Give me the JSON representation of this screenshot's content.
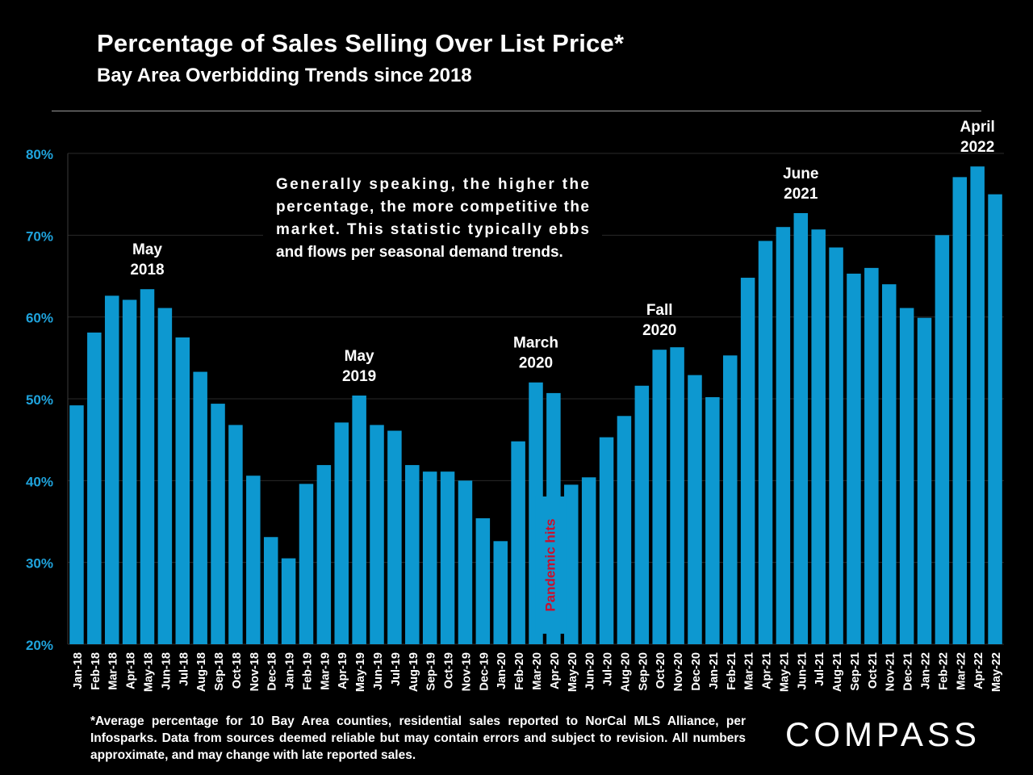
{
  "header": {
    "title": "Percentage of Sales Selling Over List Price*",
    "subtitle": "Bay Area Overbidding Trends since 2018"
  },
  "colors": {
    "bar": "#0d98d0",
    "ytick": "#1fa3dc",
    "gridline": "#2a2a2a",
    "pandemic_text": "#c8102e",
    "background": "#000000",
    "text": "#ffffff"
  },
  "chart_data": {
    "type": "bar",
    "title": "Percentage of Sales Selling Over List Price*",
    "subtitle": "Bay Area Overbidding Trends since 2018",
    "xlabel": "",
    "ylabel": "",
    "ylim": [
      20,
      80
    ],
    "yticks": [
      20,
      30,
      40,
      50,
      60,
      70,
      80
    ],
    "ytick_labels": [
      "20%",
      "30%",
      "40%",
      "50%",
      "60%",
      "70%",
      "80%"
    ],
    "grid": true,
    "categories": [
      "Jan-18",
      "Feb-18",
      "Mar-18",
      "Apr-18",
      "May-18",
      "Jun-18",
      "Jul-18",
      "Aug-18",
      "Sep-18",
      "Oct-18",
      "Nov-18",
      "Dec-18",
      "Jan-19",
      "Feb-19",
      "Mar-19",
      "Apr-19",
      "May-19",
      "Jun-19",
      "Jul-19",
      "Aug-19",
      "Sep-19",
      "Oct-19",
      "Nov-19",
      "Dec-19",
      "Jan-20",
      "Feb-20",
      "Mar-20",
      "Apr-20",
      "May-20",
      "Jun-20",
      "Jul-20",
      "Aug-20",
      "Sep-20",
      "Oct-20",
      "Nov-20",
      "Dec-20",
      "Jan-21",
      "Feb-21",
      "Mar-21",
      "Apr-21",
      "May-21",
      "Jun-21",
      "Jul-21",
      "Aug-21",
      "Sep-21",
      "Oct-21",
      "Nov-21",
      "Dec-21",
      "Jan-22",
      "Feb-22",
      "Mar-22",
      "Apr-22",
      "May-22"
    ],
    "values": [
      49.2,
      58.1,
      62.6,
      62.1,
      63.4,
      61.1,
      57.5,
      53.3,
      49.4,
      46.8,
      40.6,
      33.1,
      30.5,
      39.6,
      41.9,
      47.1,
      50.4,
      46.8,
      46.1,
      41.9,
      41.1,
      41.1,
      40.0,
      35.4,
      32.6,
      44.8,
      52.0,
      50.7,
      39.5,
      40.4,
      45.3,
      47.9,
      51.6,
      56.0,
      56.3,
      52.9,
      50.2,
      55.3,
      64.8,
      69.3,
      71.0,
      72.7,
      70.7,
      68.5,
      65.3,
      66.0,
      64.0,
      61.1,
      59.9,
      70.0,
      77.1,
      78.4,
      75.0
    ],
    "annotations": [
      {
        "lines": [
          "May",
          "2018"
        ],
        "category": "May-18"
      },
      {
        "lines": [
          "May",
          "2019"
        ],
        "category": "May-19"
      },
      {
        "lines": [
          "March",
          "2020"
        ],
        "category": "Mar-20"
      },
      {
        "lines": [
          "Fall",
          "2020"
        ],
        "category": "Oct-20"
      },
      {
        "lines": [
          "June",
          "2021"
        ],
        "category": "Jun-21"
      },
      {
        "lines": [
          "April",
          "2022"
        ],
        "category": "Apr-22"
      }
    ],
    "callout": "Generally speaking, the higher the percentage, the more competitive the market. This statistic typically ebbs and flows per seasonal demand trends.",
    "pandemic_label": "Pandemic hits",
    "pandemic_category": "Apr-20"
  },
  "footnote": "*Average percentage for 10 Bay Area counties, residential sales reported to NorCal MLS Alliance, per Infosparks. Data from sources deemed reliable but may contain errors and subject to revision. All numbers approximate, and may change with late reported sales.",
  "logo": {
    "text": "COMPASS"
  }
}
